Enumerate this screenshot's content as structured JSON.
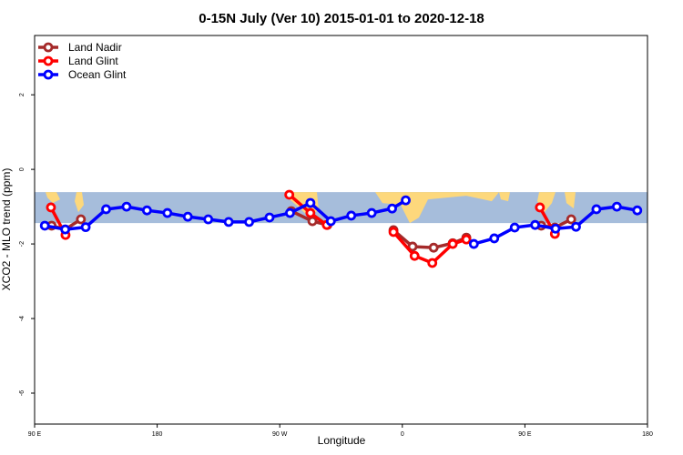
{
  "chart_data": {
    "type": "line",
    "title": "0-15N July (Ver 10)   2015-01-01 to 2020-12-18",
    "xlabel": "Longitude",
    "ylabel": "XCO2 - MLO trend (ppm)",
    "x_unit": "degrees east, unwrapped (90 E to 180 to 90 W to 0 to 90 E to 180)",
    "xlim": [
      90,
      540
    ],
    "ylim": [
      -6.83,
      3.59
    ],
    "x_ticks": [
      {
        "value": 90,
        "label": "90 E"
      },
      {
        "value": 180,
        "label": "180"
      },
      {
        "value": 270,
        "label": "90 W"
      },
      {
        "value": 360,
        "label": "0"
      },
      {
        "value": 450,
        "label": "90 E"
      },
      {
        "value": 540,
        "label": "180"
      }
    ],
    "y_ticks": [
      {
        "value": 2,
        "label": "2"
      },
      {
        "value": 0,
        "label": "0"
      },
      {
        "value": -2,
        "label": "-2"
      },
      {
        "value": -4,
        "label": "-4"
      },
      {
        "value": -6,
        "label": "-6"
      }
    ],
    "legend_position": "top-left",
    "background_map_band": {
      "lat_range": "0-15N",
      "y_range": [
        -1.44,
        -0.61
      ],
      "ocean_color": "#a6bddb",
      "land_color": "#fdd87c"
    },
    "series": [
      {
        "name": "Land Nadir",
        "color": "#a52a2a",
        "segments": [
          [
            [
              102.5,
              -1.51
            ],
            [
              112.5,
              -1.61
            ],
            [
              124,
              -1.34
            ]
          ],
          [
            [
              278.5,
              -1.12
            ],
            [
              294,
              -1.39
            ],
            [
              305,
              -1.49
            ]
          ],
          [
            [
              353.5,
              -1.63
            ],
            [
              367.5,
              -2.07
            ],
            [
              383,
              -2.1
            ],
            [
              397,
              -1.98
            ],
            [
              407,
              -1.83
            ]
          ],
          [
            [
              462,
              -1.51
            ],
            [
              472,
              -1.56
            ],
            [
              484,
              -1.34
            ]
          ]
        ]
      },
      {
        "name": "Land Glint",
        "color": "#ff0000",
        "segments": [
          [
            [
              102,
              -1.02
            ],
            [
              112.7,
              -1.76
            ]
          ],
          [
            [
              277,
              -0.68
            ],
            [
              292.5,
              -1.17
            ],
            [
              304.5,
              -1.49
            ]
          ],
          [
            [
              353.5,
              -1.68
            ],
            [
              369,
              -2.32
            ],
            [
              382,
              -2.51
            ],
            [
              397,
              -2.0
            ],
            [
              407,
              -1.88
            ]
          ],
          [
            [
              461,
              -1.02
            ],
            [
              472,
              -1.73
            ]
          ]
        ]
      },
      {
        "name": "Ocean Glint",
        "color": "#0000ff",
        "segments": [
          [
            [
              97.5,
              -1.51
            ],
            [
              112.5,
              -1.61
            ],
            [
              127.5,
              -1.55
            ],
            [
              142.5,
              -1.07
            ],
            [
              157.5,
              -1.0
            ],
            [
              172.5,
              -1.1
            ],
            [
              187.5,
              -1.17
            ],
            [
              202.5,
              -1.27
            ],
            [
              217.5,
              -1.34
            ],
            [
              232.5,
              -1.41
            ],
            [
              247.5,
              -1.41
            ],
            [
              262.5,
              -1.29
            ],
            [
              277.5,
              -1.17
            ],
            [
              292.5,
              -0.9
            ],
            [
              307.5,
              -1.39
            ],
            [
              322.5,
              -1.24
            ],
            [
              337.5,
              -1.17
            ],
            [
              352.5,
              -1.05
            ],
            [
              362.5,
              -0.83
            ]
          ],
          [
            [
              412.5,
              -2.0
            ],
            [
              427.5,
              -1.85
            ],
            [
              442.5,
              -1.56
            ],
            [
              457.5,
              -1.49
            ],
            [
              472.5,
              -1.59
            ],
            [
              487.5,
              -1.54
            ],
            [
              502.5,
              -1.07
            ],
            [
              517.5,
              -1.0
            ],
            [
              532.5,
              -1.1
            ]
          ]
        ]
      }
    ]
  }
}
